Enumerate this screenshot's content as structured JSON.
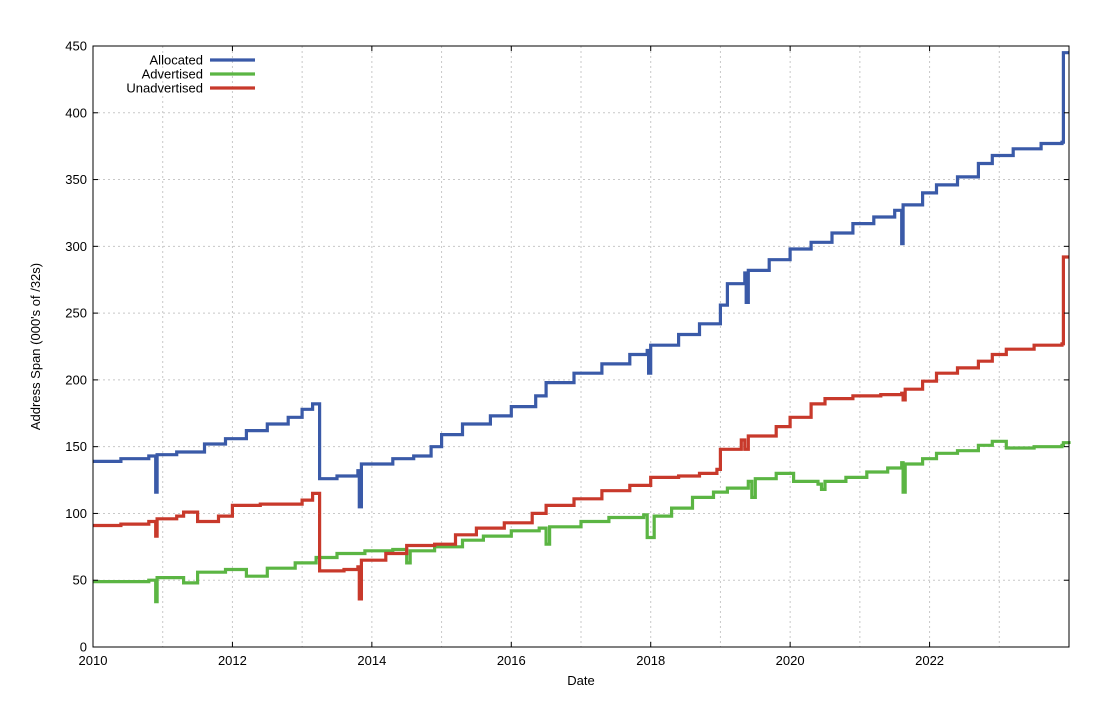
{
  "chart_data": {
    "type": "line",
    "title": "",
    "xlabel": "Date",
    "ylabel": "Address Span (000's of /32s)",
    "xlim": [
      2010,
      2024
    ],
    "ylim": [
      0,
      450
    ],
    "x_ticks": [
      "2010",
      "2012",
      "2014",
      "2016",
      "2018",
      "2020",
      "2022"
    ],
    "y_ticks": [
      "0",
      "50",
      "100",
      "150",
      "200",
      "250",
      "300",
      "350",
      "400",
      "450"
    ],
    "grid": true,
    "legend_position": "top-left",
    "series": [
      {
        "name": "Allocated",
        "color": "#3a5aa8",
        "points": [
          [
            2010.0,
            139
          ],
          [
            2010.4,
            141
          ],
          [
            2010.8,
            143
          ],
          [
            2010.9,
            116
          ],
          [
            2010.92,
            144
          ],
          [
            2011.2,
            146
          ],
          [
            2011.6,
            152
          ],
          [
            2011.9,
            156
          ],
          [
            2012.2,
            162
          ],
          [
            2012.5,
            167
          ],
          [
            2012.8,
            172
          ],
          [
            2013.0,
            178
          ],
          [
            2013.15,
            182
          ],
          [
            2013.25,
            126
          ],
          [
            2013.5,
            128
          ],
          [
            2013.8,
            132
          ],
          [
            2013.82,
            105
          ],
          [
            2013.85,
            137
          ],
          [
            2014.3,
            141
          ],
          [
            2014.6,
            143
          ],
          [
            2014.85,
            150
          ],
          [
            2015.0,
            159
          ],
          [
            2015.3,
            167
          ],
          [
            2015.7,
            173
          ],
          [
            2016.0,
            180
          ],
          [
            2016.35,
            188
          ],
          [
            2016.5,
            198
          ],
          [
            2016.9,
            205
          ],
          [
            2017.3,
            212
          ],
          [
            2017.7,
            219
          ],
          [
            2017.95,
            222
          ],
          [
            2017.97,
            205
          ],
          [
            2018.0,
            226
          ],
          [
            2018.4,
            234
          ],
          [
            2018.7,
            242
          ],
          [
            2019.0,
            256
          ],
          [
            2019.1,
            272
          ],
          [
            2019.35,
            280
          ],
          [
            2019.37,
            258
          ],
          [
            2019.4,
            282
          ],
          [
            2019.7,
            290
          ],
          [
            2020.0,
            298
          ],
          [
            2020.3,
            303
          ],
          [
            2020.6,
            310
          ],
          [
            2020.9,
            317
          ],
          [
            2021.2,
            322
          ],
          [
            2021.5,
            327
          ],
          [
            2021.6,
            302
          ],
          [
            2021.62,
            331
          ],
          [
            2021.9,
            340
          ],
          [
            2022.1,
            346
          ],
          [
            2022.4,
            352
          ],
          [
            2022.7,
            362
          ],
          [
            2022.9,
            368
          ],
          [
            2023.2,
            373
          ],
          [
            2023.6,
            377
          ],
          [
            2023.9,
            378
          ],
          [
            2023.92,
            445
          ],
          [
            2024.0,
            445
          ]
        ]
      },
      {
        "name": "Advertised",
        "color": "#5bb543",
        "points": [
          [
            2010.0,
            49
          ],
          [
            2010.4,
            49
          ],
          [
            2010.8,
            50
          ],
          [
            2010.9,
            34
          ],
          [
            2010.92,
            52
          ],
          [
            2011.2,
            52
          ],
          [
            2011.3,
            48
          ],
          [
            2011.5,
            56
          ],
          [
            2011.9,
            58
          ],
          [
            2012.2,
            53
          ],
          [
            2012.5,
            59
          ],
          [
            2012.9,
            63
          ],
          [
            2013.2,
            67
          ],
          [
            2013.5,
            70
          ],
          [
            2013.9,
            72
          ],
          [
            2014.3,
            73
          ],
          [
            2014.5,
            63
          ],
          [
            2014.55,
            72
          ],
          [
            2014.9,
            75
          ],
          [
            2015.3,
            80
          ],
          [
            2015.6,
            83
          ],
          [
            2016.0,
            87
          ],
          [
            2016.4,
            89
          ],
          [
            2016.5,
            77
          ],
          [
            2016.55,
            90
          ],
          [
            2017.0,
            94
          ],
          [
            2017.4,
            97
          ],
          [
            2017.9,
            99
          ],
          [
            2017.95,
            82
          ],
          [
            2018.05,
            98
          ],
          [
            2018.3,
            104
          ],
          [
            2018.6,
            112
          ],
          [
            2018.9,
            116
          ],
          [
            2019.1,
            119
          ],
          [
            2019.4,
            124
          ],
          [
            2019.45,
            112
          ],
          [
            2019.5,
            126
          ],
          [
            2019.8,
            130
          ],
          [
            2020.0,
            130
          ],
          [
            2020.05,
            124
          ],
          [
            2020.4,
            122
          ],
          [
            2020.45,
            118
          ],
          [
            2020.5,
            124
          ],
          [
            2020.8,
            127
          ],
          [
            2021.1,
            131
          ],
          [
            2021.4,
            134
          ],
          [
            2021.6,
            138
          ],
          [
            2021.62,
            116
          ],
          [
            2021.65,
            137
          ],
          [
            2021.9,
            141
          ],
          [
            2022.1,
            145
          ],
          [
            2022.4,
            147
          ],
          [
            2022.7,
            151
          ],
          [
            2022.9,
            154
          ],
          [
            2023.1,
            149
          ],
          [
            2023.5,
            150
          ],
          [
            2023.9,
            151
          ],
          [
            2023.92,
            153
          ],
          [
            2024.0,
            152
          ]
        ]
      },
      {
        "name": "Unadvertised",
        "color": "#c8392b",
        "points": [
          [
            2010.0,
            91
          ],
          [
            2010.4,
            92
          ],
          [
            2010.8,
            94
          ],
          [
            2010.9,
            83
          ],
          [
            2010.92,
            96
          ],
          [
            2011.2,
            98
          ],
          [
            2011.3,
            101
          ],
          [
            2011.5,
            94
          ],
          [
            2011.8,
            98
          ],
          [
            2012.0,
            106
          ],
          [
            2012.4,
            107
          ],
          [
            2012.7,
            107
          ],
          [
            2013.0,
            110
          ],
          [
            2013.15,
            115
          ],
          [
            2013.25,
            57
          ],
          [
            2013.6,
            58
          ],
          [
            2013.8,
            60
          ],
          [
            2013.82,
            36
          ],
          [
            2013.85,
            65
          ],
          [
            2014.2,
            70
          ],
          [
            2014.5,
            76
          ],
          [
            2014.9,
            77
          ],
          [
            2015.2,
            84
          ],
          [
            2015.5,
            89
          ],
          [
            2015.9,
            93
          ],
          [
            2016.3,
            100
          ],
          [
            2016.5,
            106
          ],
          [
            2016.9,
            111
          ],
          [
            2017.3,
            117
          ],
          [
            2017.7,
            121
          ],
          [
            2018.0,
            127
          ],
          [
            2018.4,
            128
          ],
          [
            2018.7,
            130
          ],
          [
            2018.95,
            133
          ],
          [
            2019.0,
            148
          ],
          [
            2019.3,
            155
          ],
          [
            2019.35,
            148
          ],
          [
            2019.4,
            158
          ],
          [
            2019.8,
            165
          ],
          [
            2020.0,
            172
          ],
          [
            2020.3,
            182
          ],
          [
            2020.5,
            186
          ],
          [
            2020.9,
            188
          ],
          [
            2021.3,
            189
          ],
          [
            2021.6,
            190
          ],
          [
            2021.62,
            185
          ],
          [
            2021.65,
            193
          ],
          [
            2021.9,
            199
          ],
          [
            2022.1,
            205
          ],
          [
            2022.4,
            209
          ],
          [
            2022.7,
            214
          ],
          [
            2022.9,
            219
          ],
          [
            2023.1,
            223
          ],
          [
            2023.5,
            226
          ],
          [
            2023.9,
            227
          ],
          [
            2023.92,
            292
          ],
          [
            2024.0,
            292
          ]
        ]
      }
    ]
  }
}
